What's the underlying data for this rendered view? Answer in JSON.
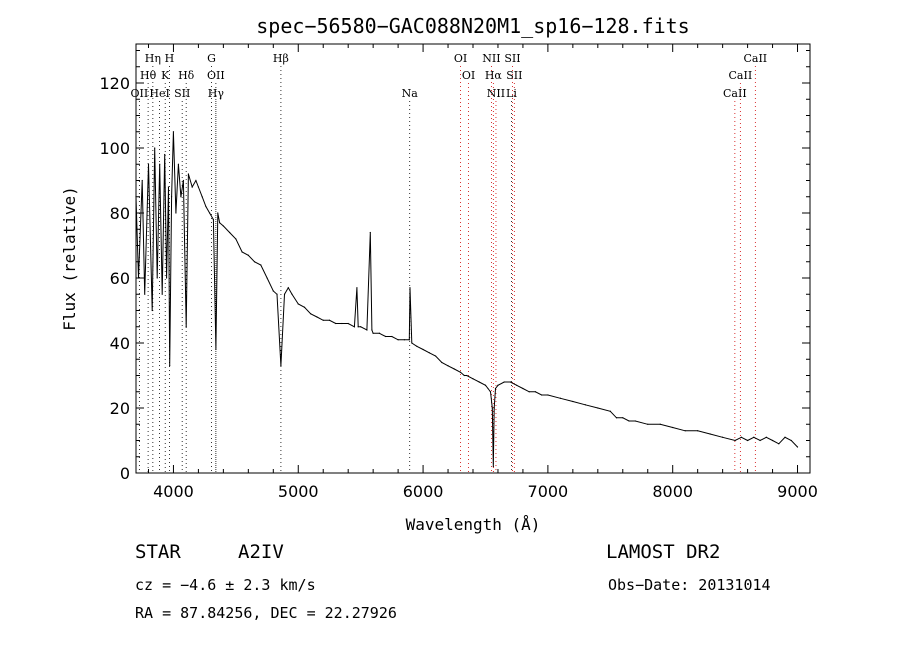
{
  "chart_data": {
    "type": "line",
    "title": "spec−56580−GAC088N20M1_sp16−128.fits",
    "xlabel": "Wavelength (Å)",
    "ylabel": "Flux (relative)",
    "xlim": [
      3700,
      9100
    ],
    "ylim": [
      0,
      132
    ],
    "xticks": [
      "4000",
      "5000",
      "6000",
      "7000",
      "8000",
      "9000"
    ],
    "xtick_values": [
      4000,
      5000,
      6000,
      7000,
      8000,
      9000
    ],
    "yticks": [
      "0",
      "20",
      "40",
      "60",
      "80",
      "100",
      "120"
    ],
    "ytick_values": [
      0,
      20,
      40,
      60,
      80,
      100,
      120
    ],
    "grid": false,
    "series": [
      {
        "x": [
          3700,
          3720,
          3750,
          3770,
          3800,
          3830,
          3850,
          3870,
          3890,
          3910,
          3930,
          3945,
          3960,
          3970,
          3985,
          4000,
          4020,
          4040,
          4060,
          4080,
          4102,
          4120,
          4150,
          4180,
          4200,
          4230,
          4260,
          4290,
          4320,
          4340,
          4355,
          4370,
          4400,
          4450,
          4500,
          4550,
          4600,
          4650,
          4700,
          4750,
          4800,
          4830,
          4861,
          4890,
          4920,
          4950,
          5000,
          5050,
          5100,
          5150,
          5200,
          5250,
          5300,
          5350,
          5400,
          5450,
          5470,
          5480,
          5500,
          5550,
          5577,
          5590,
          5600,
          5650,
          5700,
          5750,
          5800,
          5850,
          5890,
          5895,
          5910,
          5950,
          6000,
          6050,
          6100,
          6150,
          6200,
          6250,
          6300,
          6330,
          6350,
          6400,
          6450,
          6500,
          6520,
          6540,
          6555,
          6563,
          6570,
          6580,
          6600,
          6650,
          6700,
          6750,
          6800,
          6850,
          6900,
          6950,
          7000,
          7100,
          7200,
          7300,
          7400,
          7500,
          7550,
          7600,
          7650,
          7700,
          7800,
          7900,
          8000,
          8100,
          8200,
          8300,
          8400,
          8500,
          8550,
          8600,
          8650,
          8700,
          8750,
          8800,
          8850,
          8900,
          8950,
          9000
        ],
        "y": [
          85,
          60,
          90,
          55,
          95,
          50,
          100,
          60,
          95,
          55,
          98,
          60,
          88,
          33,
          85,
          105,
          80,
          95,
          85,
          90,
          45,
          92,
          88,
          90,
          88,
          85,
          82,
          80,
          78,
          38,
          80,
          77,
          76,
          74,
          72,
          68,
          67,
          65,
          64,
          60,
          56,
          55,
          33,
          55,
          57,
          55,
          52,
          51,
          49,
          48,
          47,
          47,
          46,
          46,
          46,
          45,
          57,
          45,
          45,
          44,
          74,
          44,
          43,
          43,
          42,
          42,
          41,
          41,
          41,
          57,
          40,
          39,
          38,
          37,
          36,
          34,
          33,
          32,
          31,
          30,
          30,
          29,
          28,
          27,
          26,
          25,
          20,
          2,
          20,
          26,
          27,
          28,
          28,
          27,
          26,
          25,
          25,
          24,
          24,
          23,
          22,
          21,
          20,
          19,
          17,
          17,
          16,
          16,
          15,
          15,
          14,
          13,
          13,
          12,
          11,
          10,
          11,
          10,
          11,
          10,
          11,
          10,
          9,
          11,
          10,
          8
        ]
      }
    ],
    "lines_top": [
      {
        "label": "Hη",
        "x": 3835
      },
      {
        "label": "H",
        "x": 3968
      },
      {
        "label": "G",
        "x": 4305
      },
      {
        "label": "Hβ",
        "x": 4861
      },
      {
        "label": "OI",
        "x": 6300
      },
      {
        "label": "NII",
        "x": 6548
      },
      {
        "label": "SII",
        "x": 6716
      },
      {
        "label": "CaII",
        "x": 8662
      }
    ],
    "lines_mid": [
      {
        "label": "Hθ",
        "x": 3797
      },
      {
        "label": "K",
        "x": 3934
      },
      {
        "label": "Hδ",
        "x": 4102
      },
      {
        "label": "OII",
        "x": 4340
      },
      {
        "label": "OI",
        "x": 6364
      },
      {
        "label": "Hα",
        "x": 6563
      },
      {
        "label": "SII",
        "x": 6731
      },
      {
        "label": "CaII",
        "x": 8542
      }
    ],
    "lines_bot": [
      {
        "label": "OII",
        "x": 3727
      },
      {
        "label": "HeI",
        "x": 3889
      },
      {
        "label": "SII",
        "x": 4070
      },
      {
        "label": "Hγ",
        "x": 4340
      },
      {
        "label": "Na",
        "x": 5893
      },
      {
        "label": "NII",
        "x": 6584
      },
      {
        "label": "Li",
        "x": 6708
      },
      {
        "label": "CaII",
        "x": 8498
      }
    ],
    "colors": {
      "spectrum": "#000000",
      "marker_lines": "#000000",
      "red_lines": "#d00000"
    }
  },
  "info": {
    "obj_class": "STAR",
    "subclass": "A2IV",
    "survey": "LAMOST DR2",
    "cz": "cz = −4.6 ± 2.3 km/s",
    "obs_date": "Obs−Date: 20131014",
    "coords": "RA =  87.84256, DEC =  22.27926"
  }
}
